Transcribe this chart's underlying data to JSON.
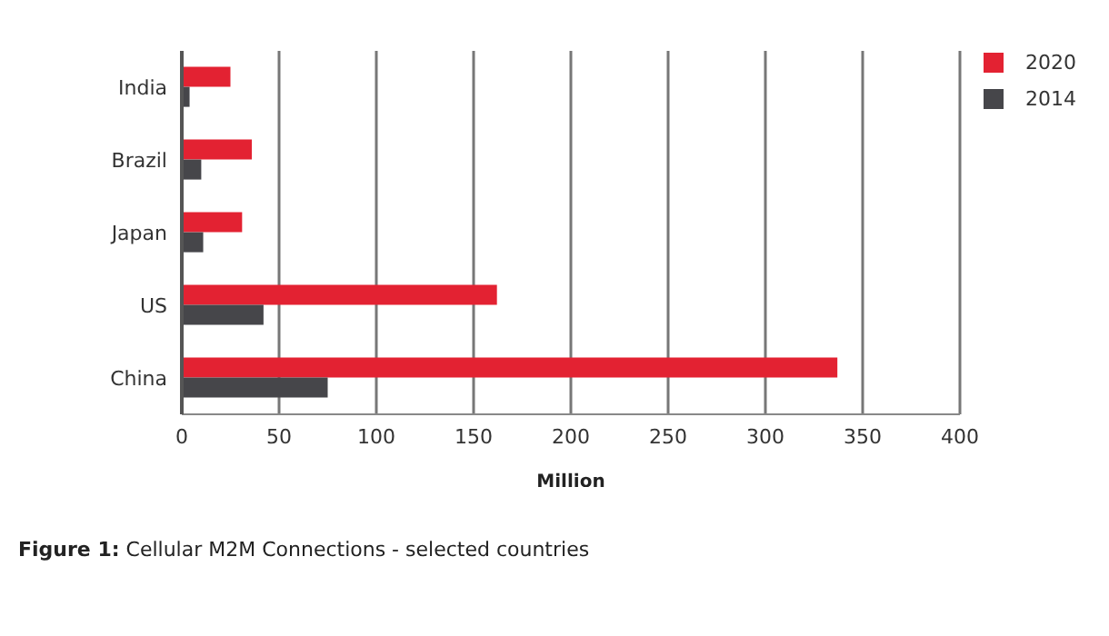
{
  "chart_data": {
    "type": "bar",
    "orientation": "horizontal",
    "categories": [
      "India",
      "Brazil",
      "Japan",
      "US",
      "China"
    ],
    "series": [
      {
        "name": "2020",
        "color": "#e32232",
        "values": [
          25,
          36,
          31,
          162,
          337
        ]
      },
      {
        "name": "2014",
        "color": "#46464a",
        "values": [
          4,
          10,
          11,
          42,
          75
        ]
      }
    ],
    "xlim": [
      0,
      400
    ],
    "xticks": [
      0,
      50,
      100,
      150,
      200,
      250,
      300,
      350,
      400
    ],
    "xlabel": "Million",
    "grid": "x",
    "legend": "top right",
    "annotations": [
      "Figure 1: Cellular M2M Connections - selected countries"
    ]
  }
}
